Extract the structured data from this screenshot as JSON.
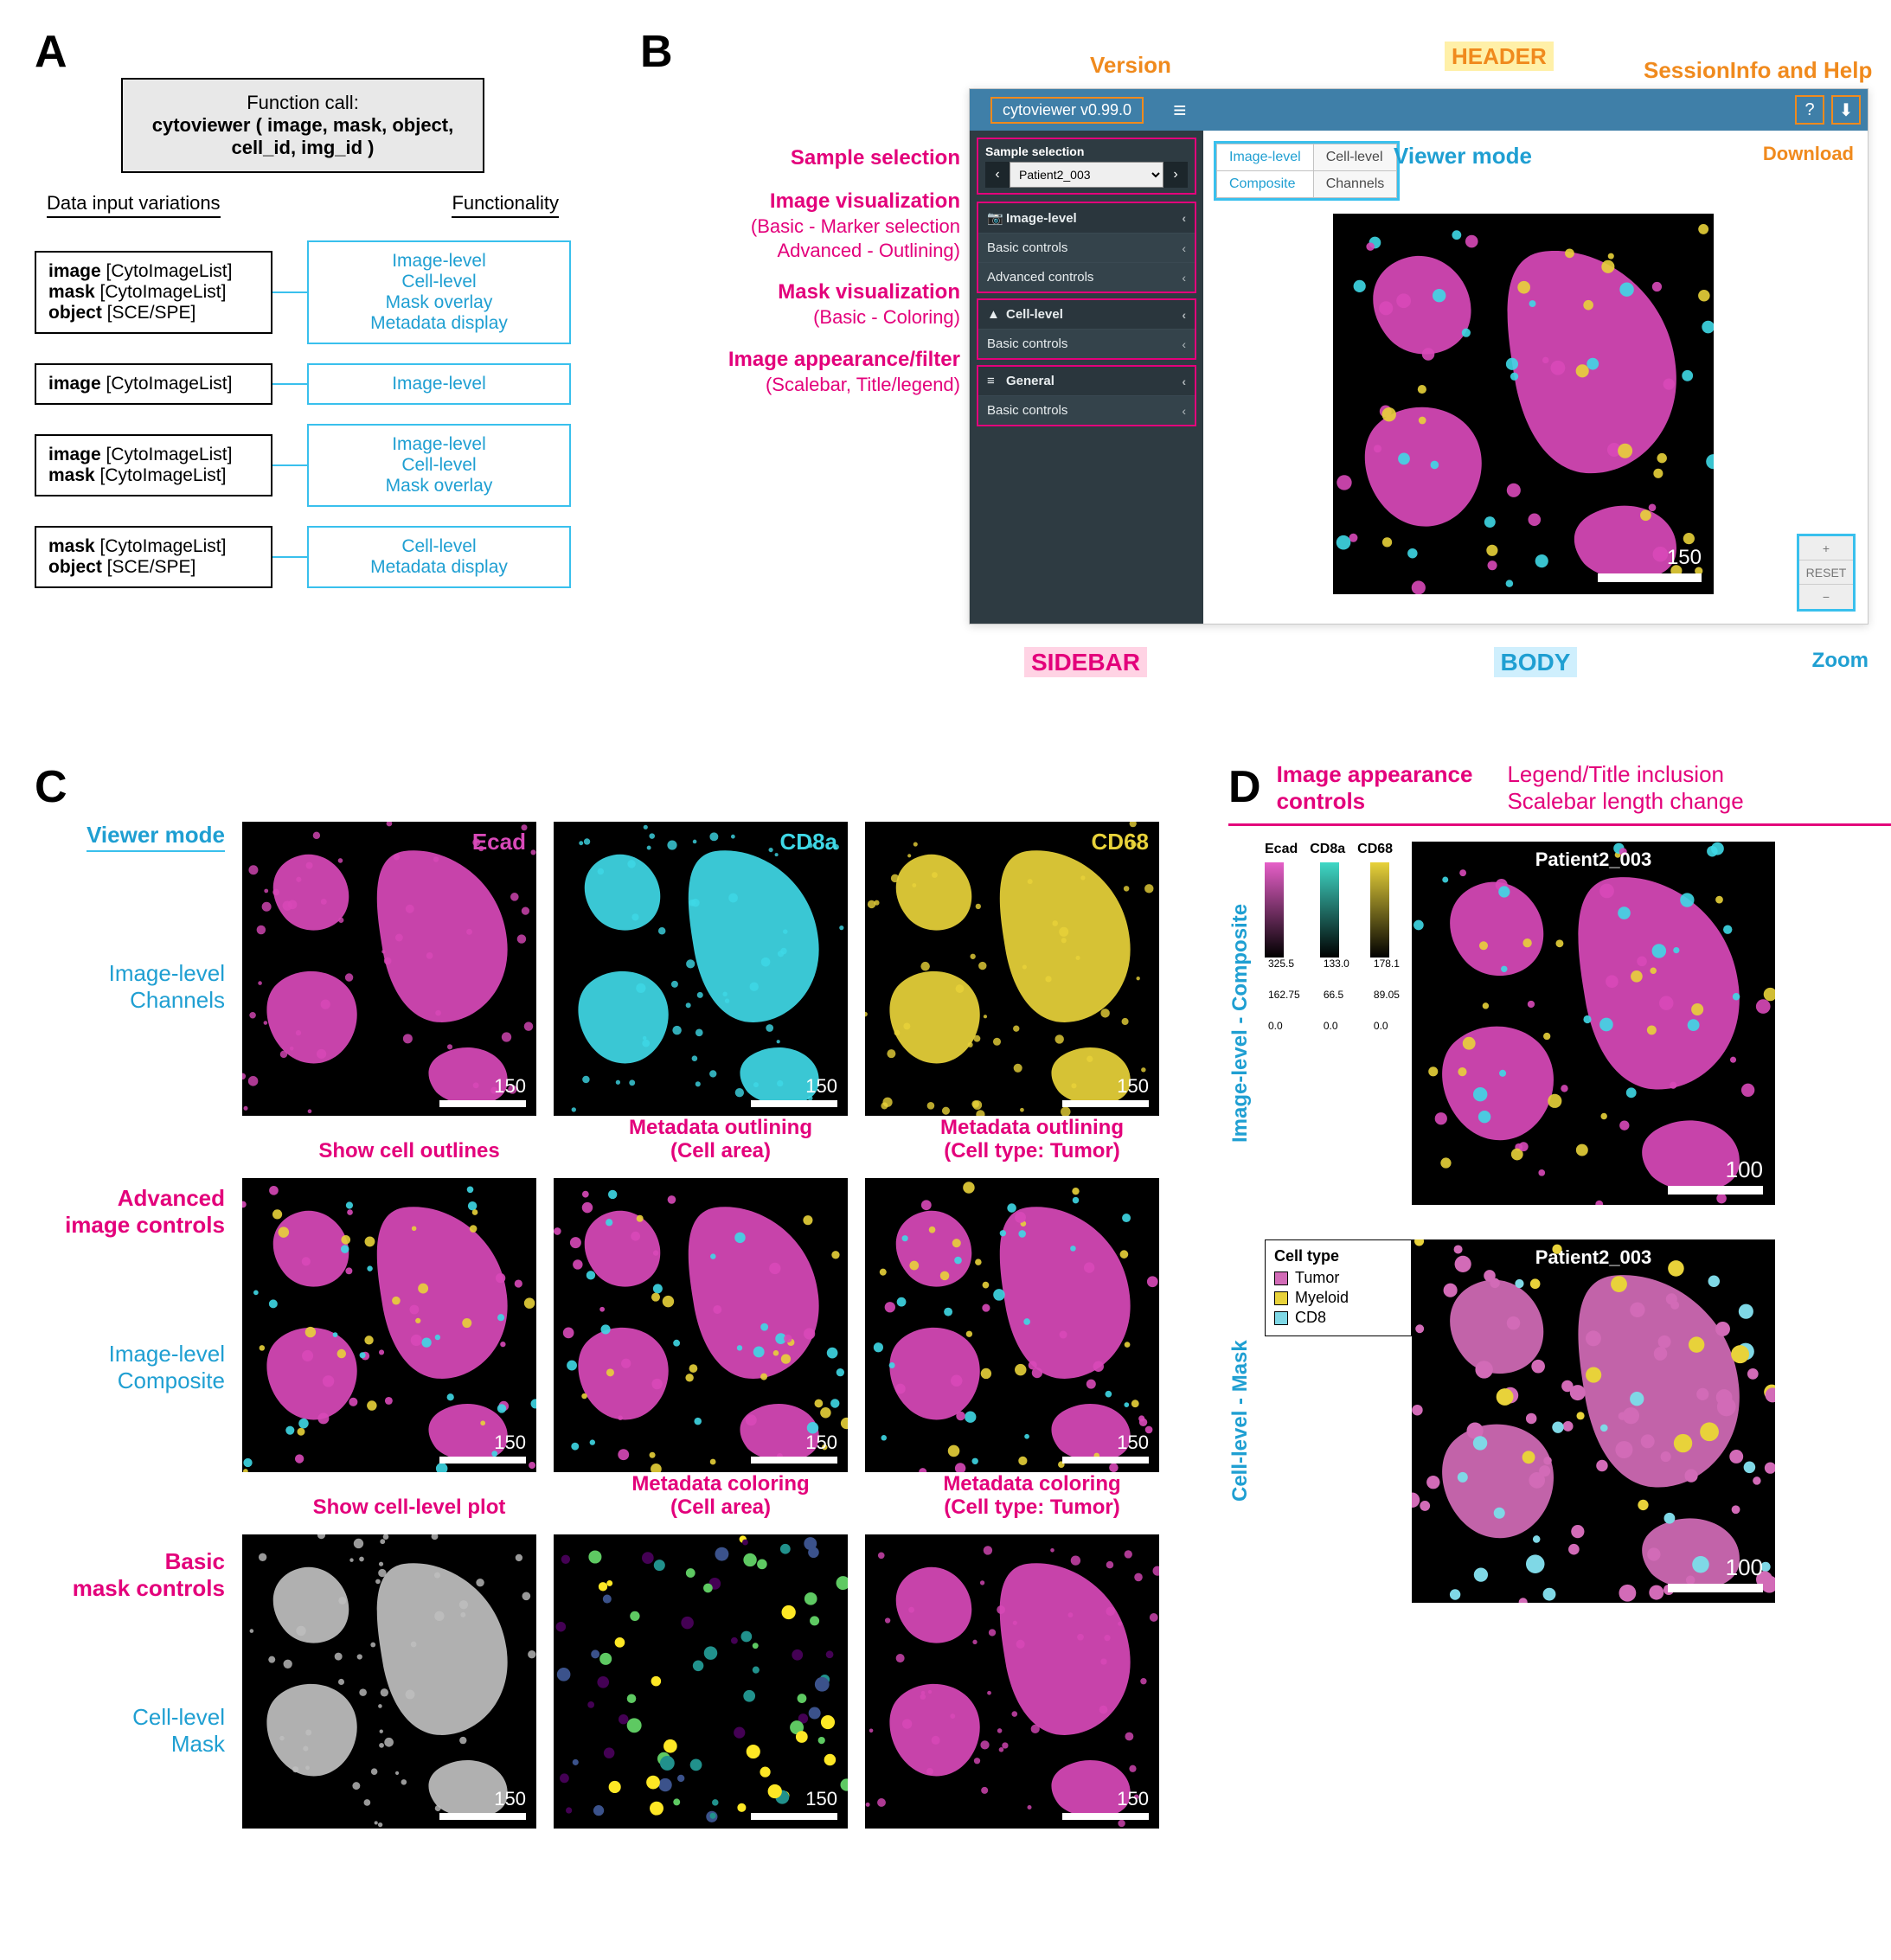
{
  "panelA": {
    "letter": "A",
    "fncall_label": "Function call:",
    "fncall_text": "cytoviewer ( image, mask, object, cell_id, img_id )",
    "colhead_left": "Data input variations",
    "colhead_right": "Functionality",
    "rows": [
      {
        "inputs": [
          {
            "k": "image",
            "t": " [CytoImageList]"
          },
          {
            "k": "mask",
            "t": " [CytoImageList]"
          },
          {
            "k": "object",
            "t": " [SCE/SPE]"
          }
        ],
        "func": "Image-level\nCell-level\nMask overlay\nMetadata display"
      },
      {
        "inputs": [
          {
            "k": "image",
            "t": " [CytoImageList]"
          }
        ],
        "func": "Image-level"
      },
      {
        "inputs": [
          {
            "k": "image",
            "t": " [CytoImageList]"
          },
          {
            "k": "mask",
            "t": " [CytoImageList]"
          }
        ],
        "func": "Image-level\nCell-level\nMask overlay"
      },
      {
        "inputs": [
          {
            "k": "mask",
            "t": " [CytoImageList]"
          },
          {
            "k": "object",
            "t": " [SCE/SPE]"
          }
        ],
        "func": "Cell-level\nMetadata display"
      }
    ]
  },
  "panelB": {
    "letter": "B",
    "annotations": {
      "version": "Version",
      "header": "HEADER",
      "sessioninfo": "SessionInfo and Help",
      "download": "Download",
      "viewer_mode": "Viewer mode",
      "sidebar": "SIDEBAR",
      "body": "BODY",
      "zoom": "Zoom"
    },
    "left_labels": [
      {
        "main": "Sample selection",
        "sub": ""
      },
      {
        "main": "Image visualization",
        "sub": "(Basic - Marker selection\nAdvanced - Outlining)"
      },
      {
        "main": "Mask visualization",
        "sub": "(Basic - Coloring)"
      },
      {
        "main": "Image appearance/filter",
        "sub": "(Scalebar, Title/legend)"
      }
    ],
    "app": {
      "version_text": "cytoviewer v0.99.0",
      "header_buttons": [
        "?",
        "⬇"
      ],
      "sample_label": "Sample selection",
      "sample_value": "Patient2_003",
      "sidebar_groups": [
        {
          "head": "Image-level",
          "icon": "📷",
          "items": [
            "Basic controls",
            "Advanced controls"
          ]
        },
        {
          "head": "Cell-level",
          "icon": "▲",
          "items": [
            "Basic controls"
          ]
        },
        {
          "head": "General",
          "icon": "≡",
          "items": [
            "Basic controls"
          ]
        }
      ],
      "tabs": [
        [
          "Image-level",
          "Cell-level"
        ],
        [
          "Composite",
          "Channels"
        ]
      ],
      "active_tab": [
        0,
        0
      ],
      "zoom_buttons": [
        "+",
        "RESET",
        "−"
      ],
      "scalebar": "150"
    },
    "tissue_colors": {
      "bg": "#000000",
      "magenta": "#d849b8",
      "cyan": "#3fd8e6",
      "yellow": "#e8d23a"
    }
  },
  "panelC": {
    "letter": "C",
    "rows": [
      {
        "left_main": "Viewer mode",
        "left_main_underline": true,
        "left_sub": "Image-level\nChannels",
        "heads": [
          "",
          "",
          ""
        ],
        "markers": [
          {
            "text": "Ecad",
            "color": "#d849b8"
          },
          {
            "text": "CD8a",
            "color": "#3fd8e6"
          },
          {
            "text": "CD68",
            "color": "#e8d23a"
          }
        ],
        "tints": [
          "#d849b8",
          "#3fd8e6",
          "#e8d23a"
        ],
        "scalebar": "150"
      },
      {
        "left_main": "Advanced\nimage controls",
        "left_main_color": "magenta",
        "left_sub": "Image-level\nComposite",
        "heads": [
          "Show cell outlines",
          "Metadata outlining\n(Cell area)",
          "Metadata outlining\n(Cell type: Tumor)"
        ],
        "tints": [
          "composite",
          "composite",
          "composite"
        ],
        "scalebar": "150"
      },
      {
        "left_main": "Basic\nmask controls",
        "left_main_color": "magenta",
        "left_sub": "Cell-level\nMask",
        "heads": [
          "Show cell-level plot",
          "Metadata coloring\n(Cell area)",
          "Metadata coloring\n(Cell type: Tumor)"
        ],
        "tints": [
          "#bfbfbf",
          "viridis",
          "#d849b8"
        ],
        "scalebar": "150"
      }
    ]
  },
  "panelD": {
    "letter": "D",
    "head_main": "Image appearance\ncontrols",
    "head_sub": "Legend/Title inclusion\nScalebar length change",
    "rows": [
      {
        "vlabel": "Image-level - Composite",
        "legend_type": "gradients",
        "gradients": [
          {
            "name": "Ecad",
            "from": "#000000",
            "to": "#e65fc8",
            "stops": [
              "325.5",
              "162.75",
              "0.0"
            ]
          },
          {
            "name": "CD8a",
            "from": "#000000",
            "to": "#3fd8c6",
            "stops": [
              "133.0",
              "66.5",
              "0.0"
            ]
          },
          {
            "name": "CD68",
            "from": "#000000",
            "to": "#e8d23a",
            "stops": [
              "178.1",
              "89.05",
              "0.0"
            ]
          }
        ],
        "title": "Patient2_003",
        "scalebar": "100",
        "tint": "composite"
      },
      {
        "vlabel": "Cell-level - Mask",
        "legend_type": "categorical",
        "legend_title": "Cell type",
        "categories": [
          {
            "name": "Tumor",
            "color": "#d26bb7"
          },
          {
            "name": "Myeloid",
            "color": "#e8d23a"
          },
          {
            "name": "CD8",
            "color": "#7fd8e6"
          }
        ],
        "title": "Patient2_003",
        "scalebar": "100",
        "tint": "mask"
      }
    ]
  }
}
